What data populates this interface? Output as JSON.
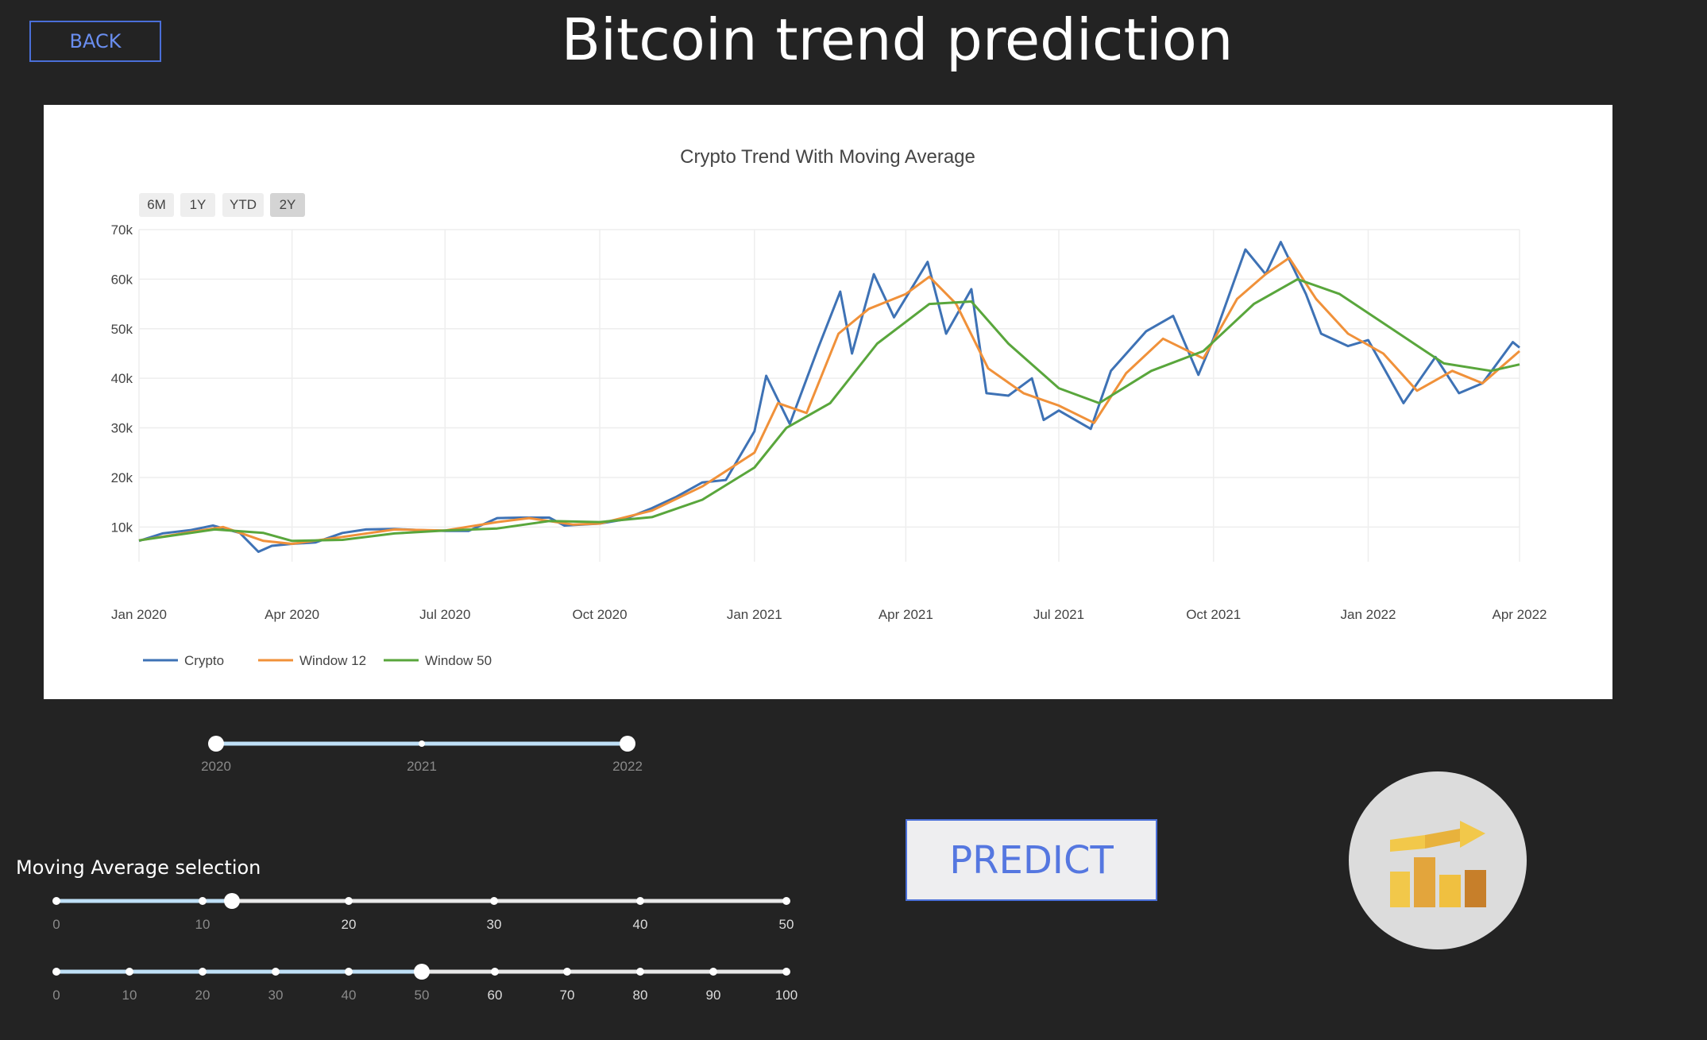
{
  "header": {
    "back_label": "BACK",
    "title": "Bitcoin trend prediction"
  },
  "range_selector": {
    "buttons": [
      "6M",
      "1Y",
      "YTD",
      "2Y"
    ],
    "active": "2Y"
  },
  "chart_data": {
    "type": "line",
    "title": "Crypto Trend With Moving Average",
    "xlabel": "",
    "ylabel": "",
    "x_ticks": [
      "Jan 2020",
      "Apr 2020",
      "Jul 2020",
      "Oct 2020",
      "Jan 2021",
      "Apr 2021",
      "Jul 2021",
      "Oct 2021",
      "Jan 2022",
      "Apr 2022"
    ],
    "y_ticks": [
      "10k",
      "20k",
      "30k",
      "40k",
      "50k",
      "60k",
      "70k"
    ],
    "ylim": [
      3000,
      70000
    ],
    "x_range": [
      "2020-01-01",
      "2022-04-01"
    ],
    "legend_position": "bottom-left",
    "grid": true,
    "series": [
      {
        "name": "Crypto",
        "color": "#3e72b5",
        "points": [
          [
            "2020-01-01",
            7200
          ],
          [
            "2020-01-15",
            8700
          ],
          [
            "2020-02-01",
            9400
          ],
          [
            "2020-02-14",
            10300
          ],
          [
            "2020-03-01",
            8800
          ],
          [
            "2020-03-12",
            5000
          ],
          [
            "2020-03-20",
            6200
          ],
          [
            "2020-04-01",
            6600
          ],
          [
            "2020-04-15",
            6900
          ],
          [
            "2020-05-01",
            8800
          ],
          [
            "2020-05-15",
            9500
          ],
          [
            "2020-06-01",
            9600
          ],
          [
            "2020-06-15",
            9400
          ],
          [
            "2020-07-01",
            9200
          ],
          [
            "2020-07-15",
            9200
          ],
          [
            "2020-08-01",
            11800
          ],
          [
            "2020-08-15",
            11900
          ],
          [
            "2020-09-01",
            11900
          ],
          [
            "2020-09-10",
            10300
          ],
          [
            "2020-10-01",
            10700
          ],
          [
            "2020-10-15",
            11500
          ],
          [
            "2020-11-01",
            13800
          ],
          [
            "2020-11-15",
            16000
          ],
          [
            "2020-12-01",
            19000
          ],
          [
            "2020-12-15",
            19500
          ],
          [
            "2021-01-01",
            29300
          ],
          [
            "2021-01-08",
            40500
          ],
          [
            "2021-01-22",
            30800
          ],
          [
            "2021-02-08",
            46200
          ],
          [
            "2021-02-21",
            57500
          ],
          [
            "2021-02-28",
            45000
          ],
          [
            "2021-03-13",
            61000
          ],
          [
            "2021-03-25",
            52300
          ],
          [
            "2021-04-14",
            63500
          ],
          [
            "2021-04-25",
            49000
          ],
          [
            "2021-05-10",
            58000
          ],
          [
            "2021-05-19",
            37000
          ],
          [
            "2021-06-01",
            36500
          ],
          [
            "2021-06-15",
            40000
          ],
          [
            "2021-06-22",
            31600
          ],
          [
            "2021-07-01",
            33500
          ],
          [
            "2021-07-20",
            29800
          ],
          [
            "2021-08-01",
            41500
          ],
          [
            "2021-08-22",
            49500
          ],
          [
            "2021-09-07",
            52600
          ],
          [
            "2021-09-22",
            40700
          ],
          [
            "2021-10-01",
            48000
          ],
          [
            "2021-10-20",
            66000
          ],
          [
            "2021-11-01",
            61000
          ],
          [
            "2021-11-10",
            67500
          ],
          [
            "2021-11-25",
            57000
          ],
          [
            "2021-12-04",
            49000
          ],
          [
            "2021-12-20",
            46500
          ],
          [
            "2022-01-01",
            47700
          ],
          [
            "2022-01-22",
            35000
          ],
          [
            "2022-02-10",
            44300
          ],
          [
            "2022-02-24",
            37000
          ],
          [
            "2022-03-10",
            39000
          ],
          [
            "2022-03-28",
            47300
          ],
          [
            "2022-04-01",
            46200
          ]
        ]
      },
      {
        "name": "Window 12",
        "color": "#f0913a",
        "points": [
          [
            "2020-01-01",
            7300
          ],
          [
            "2020-02-01",
            9000
          ],
          [
            "2020-02-20",
            10000
          ],
          [
            "2020-03-15",
            7200
          ],
          [
            "2020-04-01",
            6600
          ],
          [
            "2020-05-01",
            8000
          ],
          [
            "2020-06-01",
            9500
          ],
          [
            "2020-07-01",
            9300
          ],
          [
            "2020-08-01",
            11000
          ],
          [
            "2020-08-20",
            11800
          ],
          [
            "2020-09-15",
            10500
          ],
          [
            "2020-10-01",
            10700
          ],
          [
            "2020-11-01",
            13300
          ],
          [
            "2020-12-01",
            18200
          ],
          [
            "2021-01-01",
            25000
          ],
          [
            "2021-01-15",
            35000
          ],
          [
            "2021-02-01",
            33000
          ],
          [
            "2021-02-20",
            49000
          ],
          [
            "2021-03-10",
            54000
          ],
          [
            "2021-04-01",
            57000
          ],
          [
            "2021-04-15",
            60500
          ],
          [
            "2021-05-01",
            55000
          ],
          [
            "2021-05-20",
            42000
          ],
          [
            "2021-06-10",
            37000
          ],
          [
            "2021-07-01",
            34500
          ],
          [
            "2021-07-22",
            31000
          ],
          [
            "2021-08-10",
            41000
          ],
          [
            "2021-09-01",
            48000
          ],
          [
            "2021-09-25",
            44000
          ],
          [
            "2021-10-15",
            56000
          ],
          [
            "2021-11-01",
            61000
          ],
          [
            "2021-11-15",
            64300
          ],
          [
            "2021-12-01",
            56000
          ],
          [
            "2021-12-20",
            49000
          ],
          [
            "2022-01-10",
            45000
          ],
          [
            "2022-01-30",
            37500
          ],
          [
            "2022-02-20",
            41500
          ],
          [
            "2022-03-10",
            39000
          ],
          [
            "2022-04-01",
            45500
          ]
        ]
      },
      {
        "name": "Window 50",
        "color": "#59a63c",
        "points": [
          [
            "2020-01-01",
            7300
          ],
          [
            "2020-02-15",
            9500
          ],
          [
            "2020-03-15",
            8800
          ],
          [
            "2020-04-01",
            7200
          ],
          [
            "2020-05-01",
            7400
          ],
          [
            "2020-06-01",
            8700
          ],
          [
            "2020-07-01",
            9300
          ],
          [
            "2020-08-01",
            9700
          ],
          [
            "2020-09-01",
            11200
          ],
          [
            "2020-10-01",
            11000
          ],
          [
            "2020-11-01",
            12000
          ],
          [
            "2020-12-01",
            15500
          ],
          [
            "2021-01-01",
            22000
          ],
          [
            "2021-01-20",
            30000
          ],
          [
            "2021-02-15",
            35000
          ],
          [
            "2021-03-15",
            47000
          ],
          [
            "2021-04-15",
            55000
          ],
          [
            "2021-05-10",
            55500
          ],
          [
            "2021-06-01",
            47000
          ],
          [
            "2021-07-01",
            38000
          ],
          [
            "2021-07-25",
            35000
          ],
          [
            "2021-08-25",
            41500
          ],
          [
            "2021-09-25",
            45500
          ],
          [
            "2021-10-25",
            55000
          ],
          [
            "2021-11-20",
            60000
          ],
          [
            "2021-12-15",
            57000
          ],
          [
            "2022-01-15",
            50000
          ],
          [
            "2022-02-15",
            43000
          ],
          [
            "2022-03-15",
            41500
          ],
          [
            "2022-04-01",
            42800
          ]
        ]
      }
    ]
  },
  "year_slider": {
    "labels": [
      "2020",
      "2021",
      "2022"
    ],
    "selected": [
      2020,
      2022
    ]
  },
  "moving_average": {
    "title": "Moving Average selection",
    "slider1": {
      "labels": [
        "0",
        "10",
        "20",
        "30",
        "40",
        "50"
      ],
      "value": 12,
      "max": 50
    },
    "slider2": {
      "labels": [
        "0",
        "10",
        "20",
        "30",
        "40",
        "50",
        "60",
        "70",
        "80",
        "90",
        "100"
      ],
      "value": 50,
      "max": 100
    }
  },
  "predict_label": "PREDICT",
  "logo": {
    "icon": "trend-chart-icon",
    "colors": [
      "#f2c84a",
      "#e3a53c",
      "#f0c040",
      "#c77f2a"
    ]
  }
}
